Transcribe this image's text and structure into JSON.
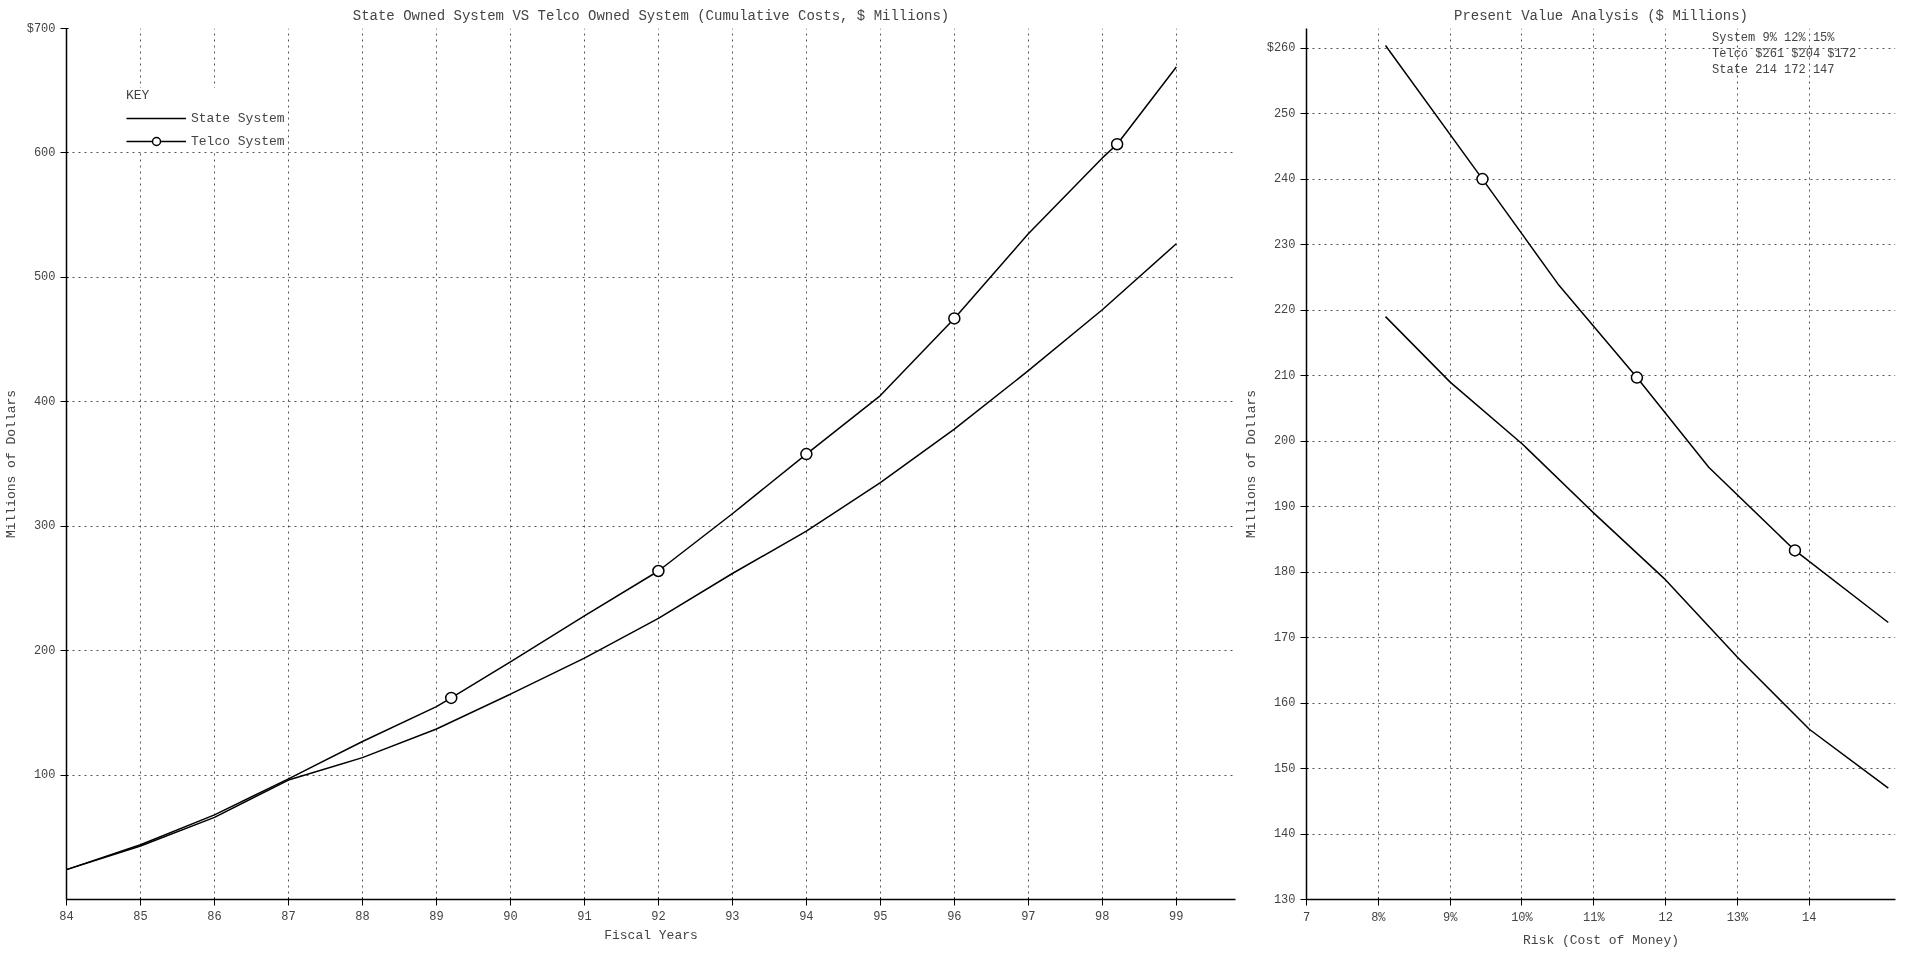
{
  "chart_data": [
    {
      "type": "line",
      "title": "State Owned System VS Telco Owned System (Cumulative Costs, $ Millions)",
      "xlabel": "Fiscal Years",
      "ylabel": "Millions of Dollars",
      "legend_title": "KEY",
      "legend": "top left",
      "grid": true,
      "line_style": "solid",
      "xlim": [
        84,
        99.8
      ],
      "ylim": [
        0,
        700
      ],
      "xticks": [
        84,
        85,
        86,
        87,
        88,
        89,
        90,
        91,
        92,
        93,
        94,
        95,
        96,
        97,
        98,
        99
      ],
      "yticks": [
        100,
        200,
        300,
        400,
        500,
        600,
        {
          "value": 700,
          "label": "$700"
        }
      ],
      "series": [
        {
          "name": "State System",
          "marker": "none",
          "color": "#000000",
          "x": [
            84,
            85,
            86,
            87,
            88,
            89,
            90,
            91,
            92,
            93,
            94,
            95,
            96,
            97,
            98,
            99
          ],
          "values": [
            24,
            43,
            66,
            96,
            114,
            137,
            165,
            194,
            226,
            262,
            296,
            335,
            378,
            425,
            474,
            527
          ]
        },
        {
          "name": "Telco System",
          "marker": "none",
          "color": "#000000",
          "x": [
            84,
            85,
            86,
            87,
            88,
            89,
            89.2,
            90,
            91,
            92,
            93,
            94,
            95,
            96,
            97,
            98,
            98.2,
            99
          ],
          "values": [
            24,
            44,
            68,
            97,
            127,
            155,
            162,
            191,
            228,
            264,
            310,
            358,
            405,
            467,
            535,
            596,
            607,
            669
          ]
        },
        {
          "type": "scatter",
          "marker": "circle",
          "color": "#000000",
          "x": [
            89.2,
            92,
            94,
            96,
            98.2
          ],
          "values": [
            162,
            264,
            358,
            467,
            607
          ]
        }
      ]
    },
    {
      "type": "line",
      "title": "Present Value Analysis ($ Millions)",
      "xlabel": "Risk (Cost of Money)",
      "ylabel": "Millions of Dollars",
      "grid": true,
      "line_style": "solid",
      "xlim": [
        7,
        15.2
      ],
      "ylim": [
        130,
        263
      ],
      "xticks": [
        7,
        {
          "value": 8,
          "label": "8%"
        },
        {
          "value": 9,
          "label": "9%"
        },
        {
          "value": 10,
          "label": "10%"
        },
        {
          "value": 11,
          "label": "11%"
        },
        12,
        {
          "value": 13,
          "label": "13%"
        },
        14
      ],
      "yticks": [
        130,
        140,
        150,
        160,
        170,
        180,
        190,
        200,
        210,
        220,
        230,
        240,
        250,
        {
          "value": 260,
          "label": "$260"
        }
      ],
      "annotations": [
        "System     9%    12%    15%",
        "Telco    $261   $204   $172",
        "State     214    172    147"
      ],
      "series": [
        {
          "marker": "none",
          "color": "#000000",
          "x": [
            8.1,
            9.45,
            10.5,
            11.6,
            12.6,
            13.8,
            15.1
          ],
          "values": [
            260.4,
            240,
            224,
            209.7,
            196,
            183.3,
            172.3
          ]
        },
        {
          "marker": "none",
          "color": "#000000",
          "x": [
            8.1,
            9,
            10,
            11,
            12,
            13,
            14,
            15.1
          ],
          "values": [
            219,
            209,
            199.6,
            189,
            178.8,
            167,
            156,
            147
          ]
        },
        {
          "type": "scatter",
          "marker": "circle",
          "color": "#000000",
          "x": [
            9.45,
            11.6,
            13.8
          ],
          "values": [
            240,
            209.7,
            183.3
          ]
        }
      ]
    }
  ]
}
